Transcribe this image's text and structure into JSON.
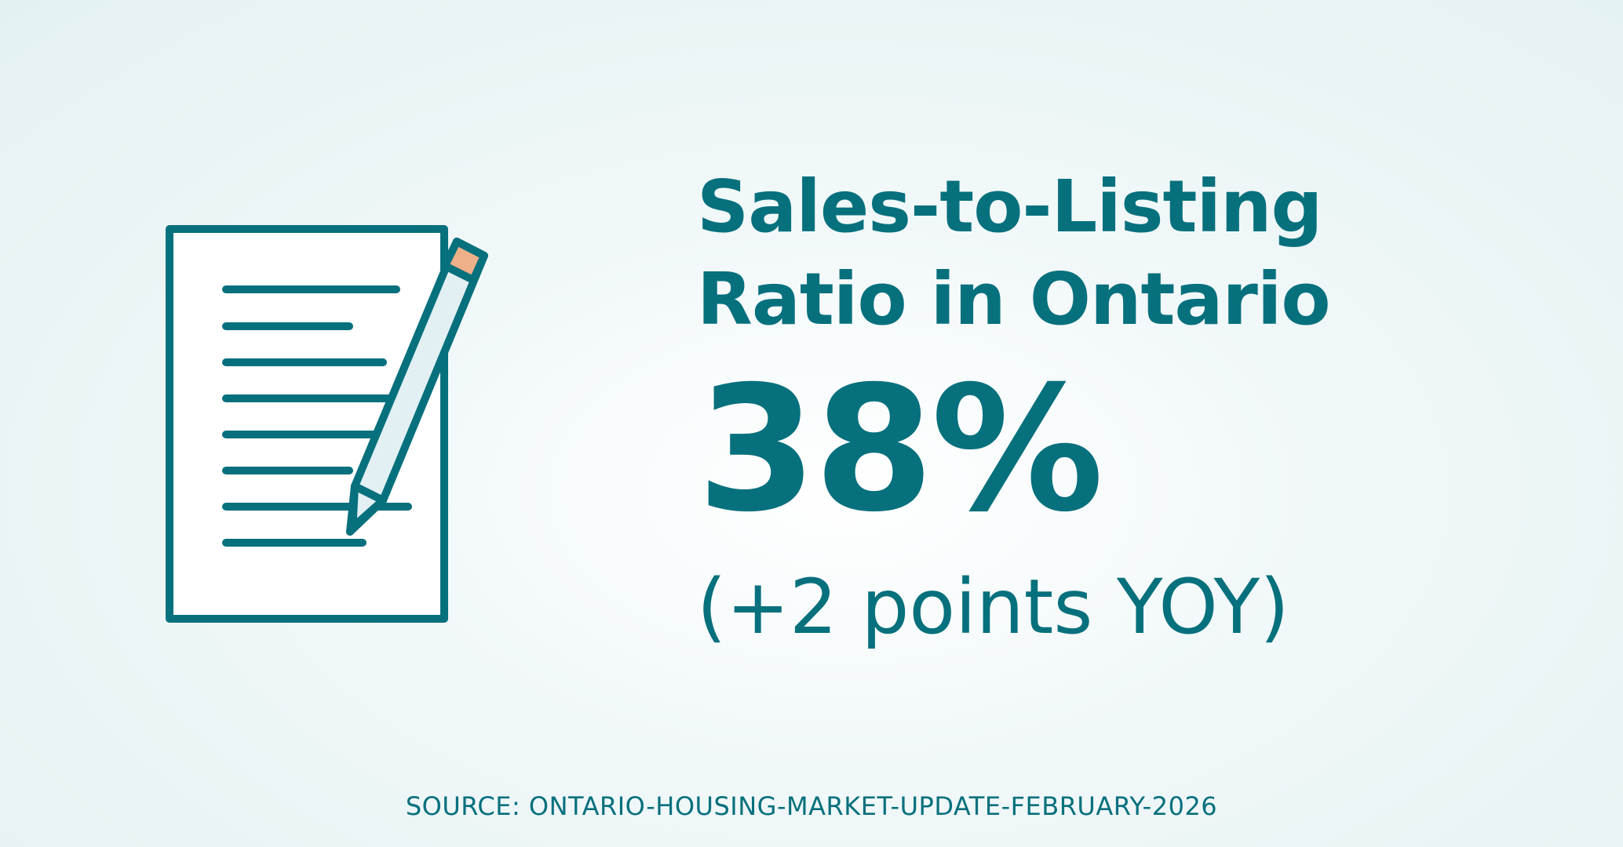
{
  "infographic": {
    "title_lines": [
      "Sales-to-Listing",
      "Ratio in Ontario"
    ],
    "stat_value": "38%",
    "stat_change": "(+2 points YOY)",
    "source": "SOURCE: ONTARIO-HOUSING-MARKET-UPDATE-FEBRUARY-2026"
  },
  "icons": {
    "illustration": "document-with-pencil-icon"
  },
  "colors": {
    "primary": "#07707d",
    "background": "#eaf4f5",
    "paper": "#ffffff",
    "pencil_body": "#e2f0f4",
    "pencil_eraser": "#eeb088"
  }
}
